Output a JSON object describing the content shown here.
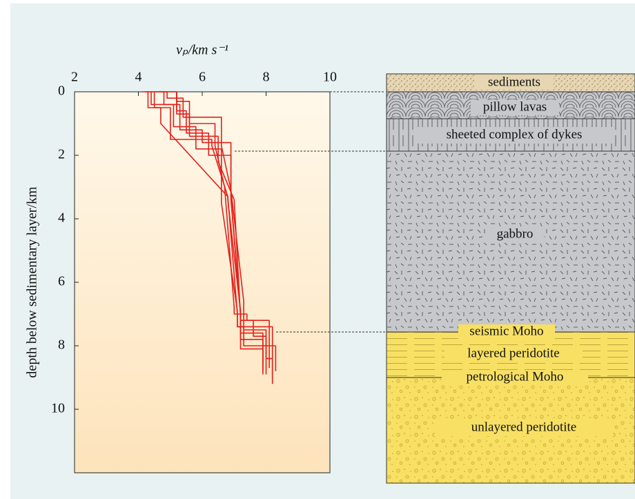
{
  "chart_data": {
    "type": "line",
    "x_label": "vₚ/km s⁻¹",
    "y_label": "depth below sedimentary layer/km",
    "xlim": [
      2,
      10
    ],
    "xticks": [
      2,
      4,
      6,
      8,
      10
    ],
    "ylim": [
      0,
      12
    ],
    "yticks": [
      0,
      2,
      4,
      6,
      8,
      10
    ],
    "y_inverted": true,
    "series": [
      {
        "color": "#e3201b",
        "x": [
          4.2,
          4.5,
          4.5,
          5.0,
          5.0,
          6.3,
          6.3,
          6.8,
          7.1,
          7.1,
          8.2,
          8.2
        ],
        "values": [
          0,
          0,
          0.5,
          0.5,
          1.5,
          1.5,
          1.7,
          3.3,
          7.0,
          7.4,
          7.4,
          9.2
        ]
      },
      {
        "color": "#e3201b",
        "x": [
          4.4,
          4.8,
          4.8,
          5.3,
          5.3,
          6.0,
          6.0,
          6.9,
          6.9,
          7.2,
          7.2,
          7.9,
          7.9
        ],
        "values": [
          0,
          0,
          0.4,
          0.4,
          1.2,
          1.2,
          1.6,
          1.6,
          3.3,
          7.0,
          7.6,
          7.6,
          8.8
        ]
      },
      {
        "color": "#e3201b",
        "x": [
          4.6,
          5.2,
          5.2,
          5.6,
          5.6,
          6.4,
          6.4,
          6.7,
          7.0,
          7.0,
          7.4,
          7.4,
          8.1,
          8.1
        ],
        "values": [
          0,
          0,
          0.3,
          0.3,
          1.0,
          1.0,
          1.7,
          3.0,
          6.8,
          7.0,
          7.0,
          7.2,
          7.2,
          8.7
        ]
      },
      {
        "color": "#e3201b",
        "x": [
          4.3,
          4.3,
          4.7,
          4.7,
          6.8,
          6.8,
          7.2,
          7.2,
          7.6,
          7.6,
          8.0,
          8.0
        ],
        "values": [
          0,
          0.5,
          0.5,
          1.0,
          3.3,
          3.4,
          6.9,
          7.2,
          7.2,
          7.7,
          7.7,
          8.9
        ]
      },
      {
        "color": "#e3201b",
        "x": [
          4.1,
          4.4,
          4.4,
          5.1,
          5.1,
          5.8,
          5.8,
          6.6,
          6.6,
          7.1,
          7.1,
          7.3,
          7.3,
          8.3,
          8.3
        ],
        "values": [
          0,
          0,
          0.4,
          0.4,
          1.1,
          1.1,
          1.8,
          1.8,
          3.5,
          6.9,
          7.4,
          7.4,
          8.0,
          8.0,
          8.8
        ]
      },
      {
        "color": "#e3201b",
        "x": [
          4.8,
          5.2,
          5.2,
          5.5,
          5.5,
          6.2,
          6.2,
          6.9,
          6.9,
          7.2,
          7.2,
          7.9,
          7.9
        ],
        "values": [
          0,
          0,
          0.6,
          0.6,
          1.3,
          1.3,
          2.0,
          2.0,
          3.4,
          7.0,
          7.8,
          7.8,
          8.6
        ]
      },
      {
        "color": "#e3201b",
        "x": [
          4.5,
          4.9,
          4.9,
          5.4,
          5.4,
          6.6,
          6.6,
          6.9,
          7.3,
          7.3,
          8.0,
          8.0,
          8.2,
          8.2
        ],
        "values": [
          0,
          0,
          0.2,
          0.2,
          0.8,
          0.8,
          1.7,
          3.1,
          6.6,
          7.5,
          7.5,
          8.4,
          8.4,
          9.0
        ]
      },
      {
        "color": "#e3201b",
        "x": [
          5.2,
          5.2,
          5.6,
          5.6,
          6.5,
          6.5,
          7.0,
          7.2,
          7.2,
          7.9,
          7.9
        ],
        "values": [
          0,
          0.7,
          0.7,
          1.4,
          1.4,
          2.2,
          3.4,
          7.1,
          8.1,
          8.1,
          8.9
        ]
      }
    ]
  },
  "column": {
    "labels": [
      "sediments",
      "pillow lavas",
      "sheeted complex of dykes",
      "gabbro",
      "seismic Moho",
      "layered peridotite",
      "petrological Moho",
      "unlayered peridotite"
    ]
  }
}
